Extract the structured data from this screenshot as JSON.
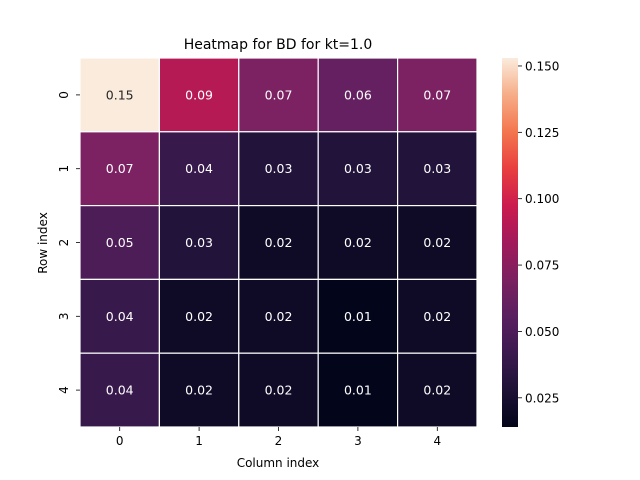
{
  "chart_data": {
    "type": "heatmap",
    "title": "Heatmap for BD for kt=1.0",
    "xlabel": "Column index",
    "ylabel": "Row index",
    "x_categories": [
      "0",
      "1",
      "2",
      "3",
      "4"
    ],
    "y_categories": [
      "0",
      "1",
      "2",
      "3",
      "4"
    ],
    "values": [
      [
        0.153,
        0.09,
        0.07,
        0.06,
        0.07
      ],
      [
        0.07,
        0.04,
        0.03,
        0.03,
        0.03
      ],
      [
        0.05,
        0.03,
        0.02,
        0.02,
        0.02
      ],
      [
        0.04,
        0.02,
        0.02,
        0.01,
        0.02
      ],
      [
        0.04,
        0.02,
        0.02,
        0.01,
        0.02
      ]
    ],
    "cell_labels": [
      [
        "0.15",
        "0.09",
        "0.07",
        "0.06",
        "0.07"
      ],
      [
        "0.07",
        "0.04",
        "0.03",
        "0.03",
        "0.03"
      ],
      [
        "0.05",
        "0.03",
        "0.02",
        "0.02",
        "0.02"
      ],
      [
        "0.04",
        "0.02",
        "0.02",
        "0.01",
        "0.02"
      ],
      [
        "0.04",
        "0.02",
        "0.02",
        "0.01",
        "0.02"
      ]
    ],
    "colorbar": {
      "min": 0.014,
      "max": 0.153,
      "ticks": [
        0.025,
        0.05,
        0.075,
        0.1,
        0.125,
        0.15
      ],
      "tick_labels": [
        "0.025",
        "0.050",
        "0.075",
        "0.100",
        "0.125",
        "0.150"
      ]
    },
    "colormap": "rocket",
    "grid": false
  }
}
